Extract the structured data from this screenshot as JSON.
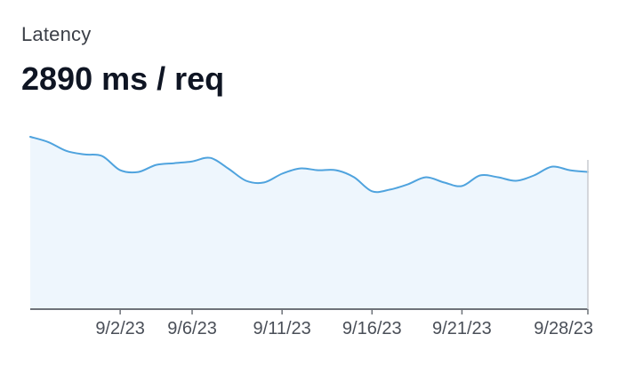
{
  "metric": {
    "label": "Latency",
    "value": "2890 ms / req"
  },
  "colors": {
    "line": "#4fa3de",
    "fill": "#eef6fd",
    "axis": "#6e7279",
    "text": "#0f1523"
  },
  "chart_data": {
    "type": "area",
    "title": "",
    "xlabel": "",
    "ylabel": "",
    "x_range": [
      "2023-08-28",
      "2023-09-28"
    ],
    "x_ticks": [
      "9/2/23",
      "9/6/23",
      "9/11/23",
      "9/16/23",
      "9/21/23",
      "9/28/23"
    ],
    "tick_dates": [
      "2023-09-02",
      "2023-09-06",
      "2023-09-11",
      "2023-09-16",
      "2023-09-21",
      "2023-09-28"
    ],
    "grid": false,
    "y_axis_labels": false,
    "series": [
      {
        "x": [
          "2023-08-28",
          "2023-08-29",
          "2023-08-30",
          "2023-08-31",
          "2023-09-01",
          "2023-09-02",
          "2023-09-03",
          "2023-09-04",
          "2023-09-05",
          "2023-09-06",
          "2023-09-07",
          "2023-09-08",
          "2023-09-09",
          "2023-09-10",
          "2023-09-11",
          "2023-09-12",
          "2023-09-13",
          "2023-09-14",
          "2023-09-15",
          "2023-09-16",
          "2023-09-17",
          "2023-09-18",
          "2023-09-19",
          "2023-09-20",
          "2023-09-21",
          "2023-09-22",
          "2023-09-23",
          "2023-09-24",
          "2023-09-25",
          "2023-09-26",
          "2023-09-27",
          "2023-09-28"
        ],
        "values": [
          98,
          95,
          90,
          88,
          87,
          79,
          78,
          82,
          83,
          84,
          86,
          80,
          73,
          72,
          77,
          80,
          79,
          79,
          75,
          67,
          68,
          71,
          75,
          72,
          70,
          76,
          75,
          73,
          76,
          81,
          79,
          78
        ]
      }
    ]
  }
}
